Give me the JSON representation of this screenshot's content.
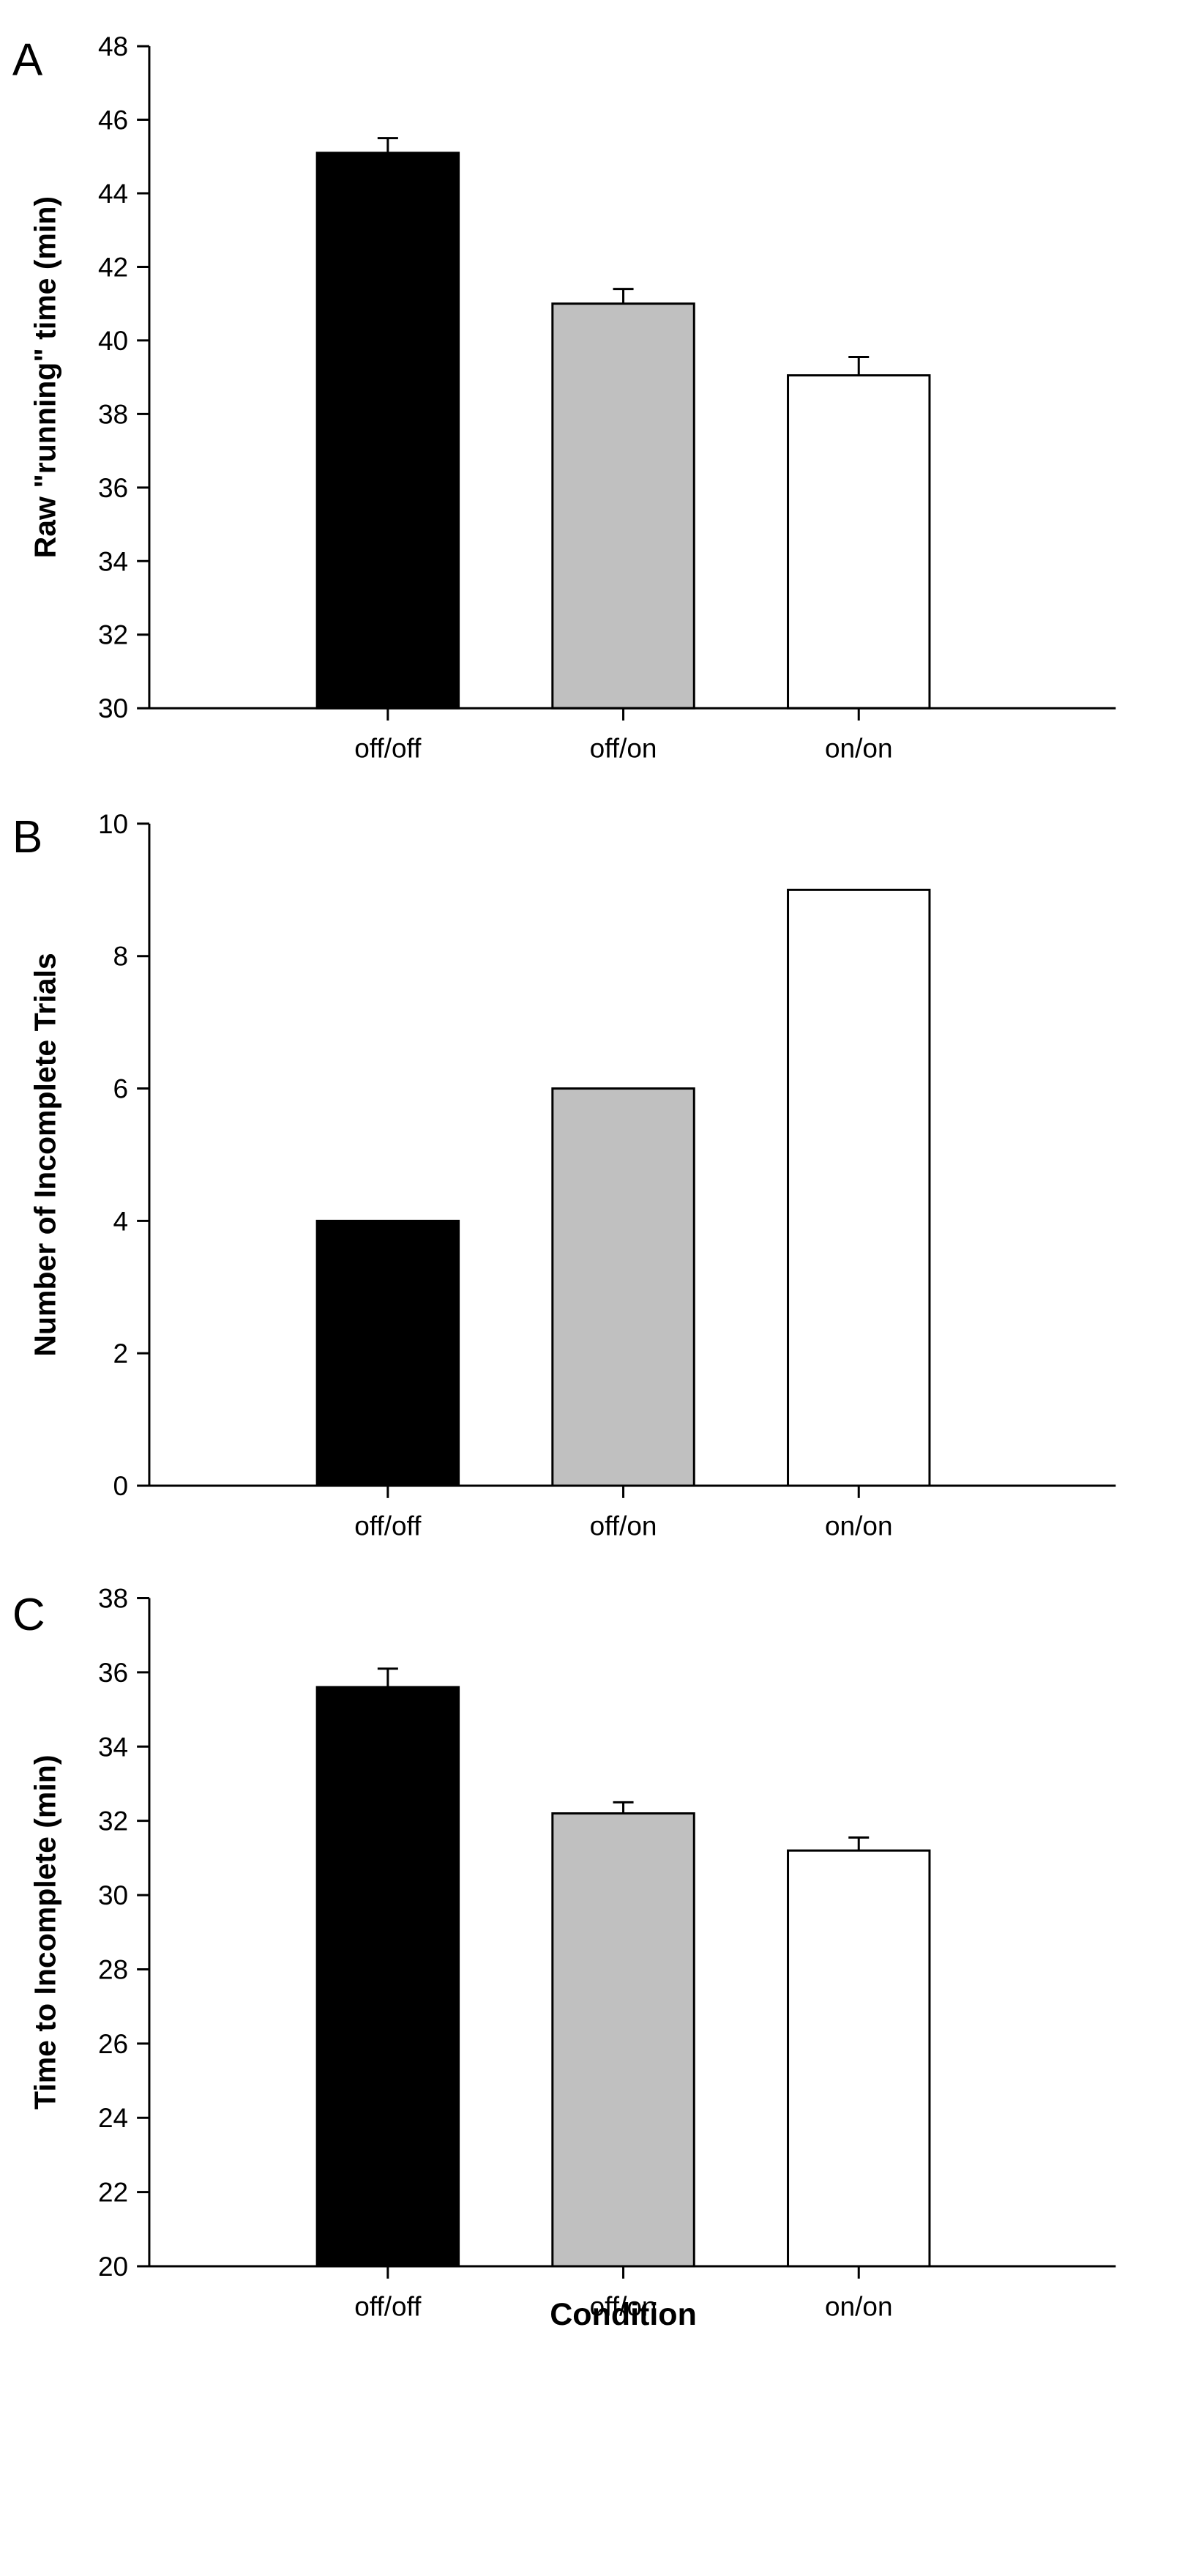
{
  "chart_data": [
    {
      "panel": "A",
      "type": "bar",
      "categories": [
        "off/off",
        "off/on",
        "on/on"
      ],
      "values": [
        45.1,
        41.0,
        39.05
      ],
      "errors": [
        0.4,
        0.4,
        0.5
      ],
      "colors": [
        "#000000",
        "#c0c0c0",
        "#ffffff"
      ],
      "ylabel": "Raw \"running\" time (min)",
      "xlabel": "",
      "ylim": [
        30,
        48
      ],
      "yticks": [
        "30",
        "32",
        "34",
        "36",
        "38",
        "40",
        "42",
        "44",
        "46",
        "48"
      ]
    },
    {
      "panel": "B",
      "type": "bar",
      "categories": [
        "off/off",
        "off/on",
        "on/on"
      ],
      "values": [
        4,
        6,
        9
      ],
      "errors": [
        0,
        0,
        0
      ],
      "colors": [
        "#000000",
        "#c0c0c0",
        "#ffffff"
      ],
      "ylabel": "Number of Incomplete Trials",
      "xlabel": "",
      "ylim": [
        0,
        10
      ],
      "yticks": [
        "0",
        "2",
        "4",
        "6",
        "8",
        "10"
      ]
    },
    {
      "panel": "C",
      "type": "bar",
      "categories": [
        "off/off",
        "off/on",
        "on/on"
      ],
      "values": [
        35.6,
        32.2,
        31.2
      ],
      "errors": [
        0.5,
        0.3,
        0.35
      ],
      "colors": [
        "#000000",
        "#c0c0c0",
        "#ffffff"
      ],
      "ylabel": "Time to Incomplete (min)",
      "xlabel": "Condition",
      "ylim": [
        20,
        38
      ],
      "yticks": [
        "20",
        "22",
        "24",
        "26",
        "28",
        "30",
        "32",
        "34",
        "36",
        "38"
      ]
    }
  ]
}
